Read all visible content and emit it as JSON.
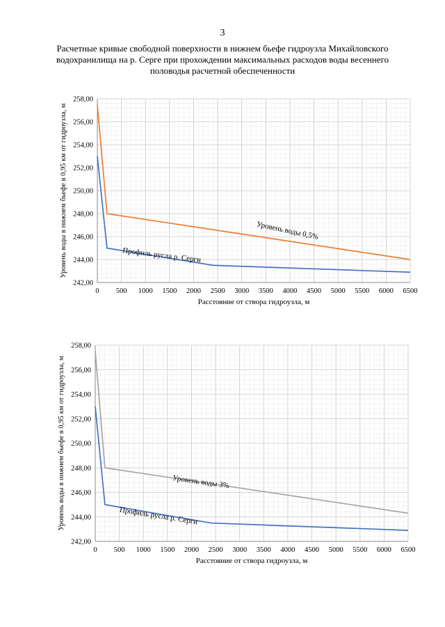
{
  "page": {
    "number": "3",
    "title": "Расчетные кривые свободной поверхности в нижнем бьефе гидроузла Михайловского водохранилища на р. Серге при прохождении максимальных расходов воды весеннего половодья расчетной обеспеченности"
  },
  "chart_data": [
    {
      "type": "line",
      "title": "",
      "xlabel": "Расстояние от створа гидроузла, м",
      "ylabel": "Уровень воды в нижнем бьефе в 0,95 км от гидроузла, м",
      "xlim": [
        0,
        6500
      ],
      "ylim": [
        242,
        258
      ],
      "x_ticks": [
        "0",
        "500",
        "1000",
        "1500",
        "2000",
        "2500",
        "3000",
        "3500",
        "4000",
        "4500",
        "5000",
        "5500",
        "6000",
        "6500"
      ],
      "y_ticks": [
        "242,00",
        "244,00",
        "246,00",
        "248,00",
        "250,00",
        "252,00",
        "254,00",
        "256,00",
        "258,00"
      ],
      "grid": true,
      "series": [
        {
          "name": "Уровень воды 0,5%",
          "color": "#ed7d31",
          "x": [
            0,
            200,
            6500
          ],
          "y": [
            257.5,
            248.0,
            244.0
          ]
        },
        {
          "name": "Профиль русла р. Серги",
          "color": "#4472c4",
          "x": [
            0,
            200,
            2400,
            6500
          ],
          "y": [
            253.0,
            245.0,
            243.5,
            242.9
          ]
        }
      ],
      "annotations": [
        {
          "text": "Уровень воды 0,5%",
          "x": 3300,
          "y": 246.9,
          "angle": 12
        },
        {
          "text": "Профиль русла р. Серги",
          "x": 520,
          "y": 244.6,
          "angle": 7
        }
      ]
    },
    {
      "type": "line",
      "title": "",
      "xlabel": "Расстояние от створа гидроузла, м",
      "ylabel": "Уровень воды в нижнем бьефе в 0,95 км от гидроузла, м",
      "xlim": [
        0,
        6500
      ],
      "ylim": [
        242,
        258
      ],
      "x_ticks": [
        "0",
        "500",
        "1000",
        "1500",
        "2000",
        "2500",
        "3000",
        "3500",
        "4000",
        "4500",
        "5000",
        "5500",
        "6000",
        "6500"
      ],
      "y_ticks": [
        "242,00",
        "244,00",
        "246,00",
        "248,00",
        "250,00",
        "252,00",
        "254,00",
        "256,00",
        "258,00"
      ],
      "grid": true,
      "series": [
        {
          "name": "Уровень воды 3%",
          "color": "#a5a5a5",
          "x": [
            0,
            200,
            6500
          ],
          "y": [
            257.5,
            248.0,
            244.3
          ]
        },
        {
          "name": "Профиль русла р. Серги",
          "color": "#4472c4",
          "x": [
            0,
            200,
            2400,
            6500
          ],
          "y": [
            253.0,
            245.0,
            243.5,
            242.9
          ]
        }
      ],
      "annotations": [
        {
          "text": "Уровень воды 3%",
          "x": 1600,
          "y": 247.0,
          "angle": 8
        },
        {
          "text": "Профиль русла р. Серги",
          "x": 500,
          "y": 244.4,
          "angle": 9
        }
      ]
    }
  ]
}
